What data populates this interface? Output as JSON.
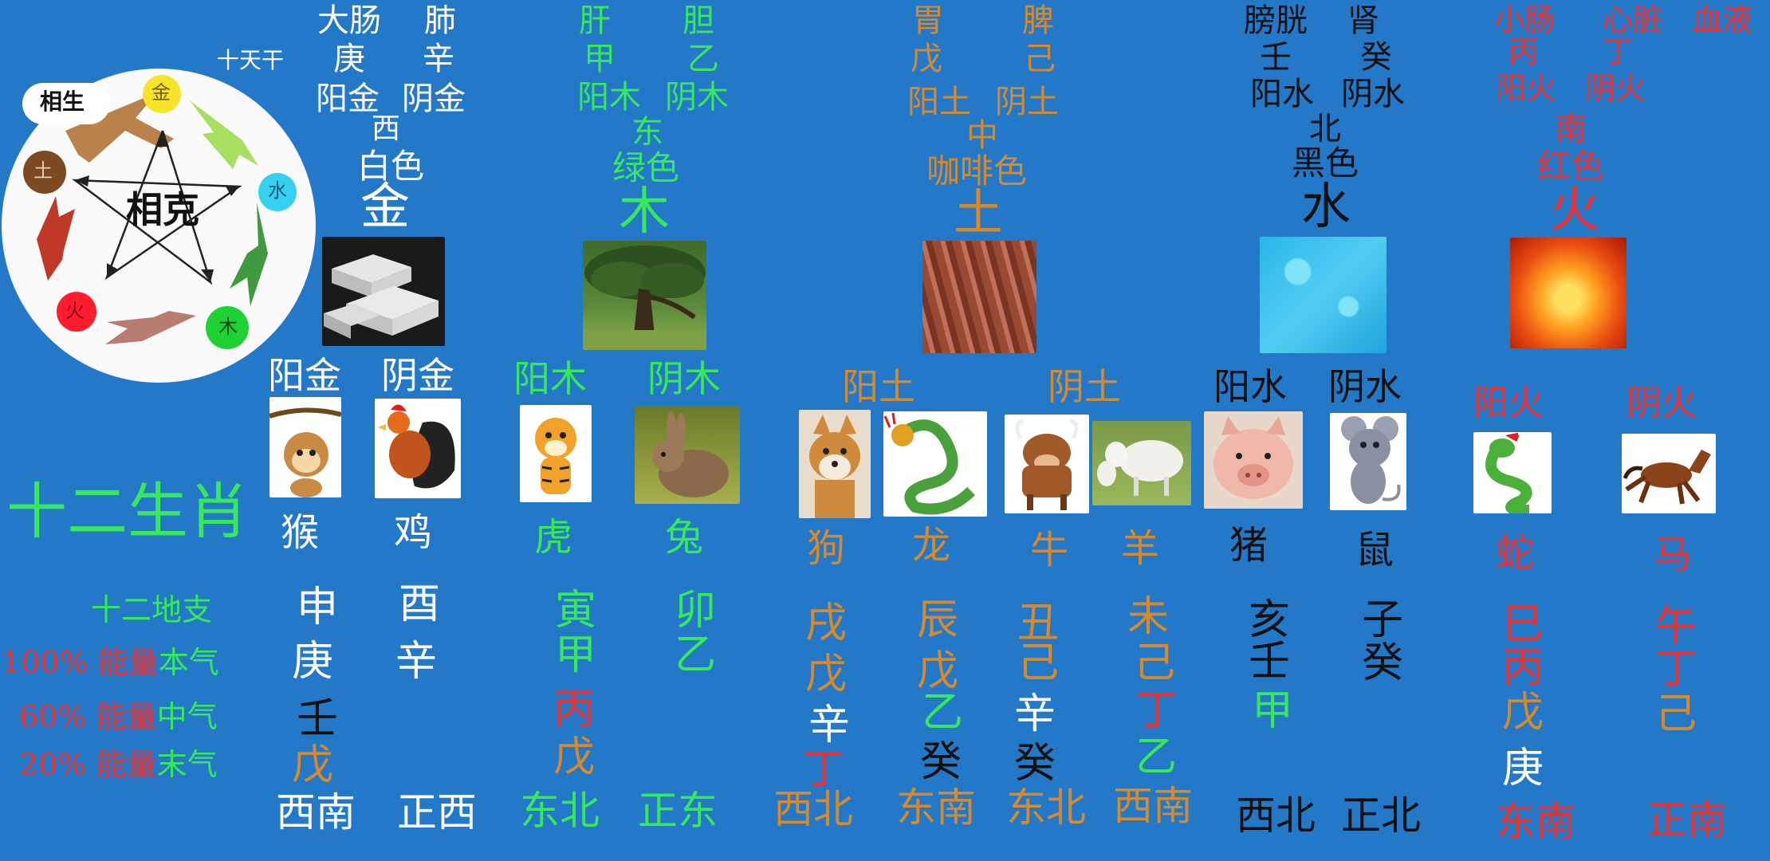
{
  "wheel": {
    "sheng_label": "相生",
    "ke_label": "相克",
    "nodes": {
      "jin": "金",
      "shui": "水",
      "mu": "木",
      "huo": "火",
      "tu": "土"
    }
  },
  "tiangan_label": "十天干",
  "groups": {
    "metal": {
      "organs": [
        "大肠",
        "肺"
      ],
      "stems": [
        "庚",
        "辛"
      ],
      "yinyang": [
        "阳金",
        "阴金"
      ],
      "direction": "西",
      "color": "白色",
      "element": "金"
    },
    "wood": {
      "organs": [
        "肝",
        "胆"
      ],
      "stems": [
        "甲",
        "乙"
      ],
      "yinyang": [
        "阳木",
        "阴木"
      ],
      "direction": "东",
      "color": "绿色",
      "element": "木"
    },
    "earth": {
      "organs": [
        "胃",
        "脾"
      ],
      "stems": [
        "戊",
        "己"
      ],
      "yinyang": [
        "阳土",
        "阴土"
      ],
      "direction": "中",
      "color": "咖啡色",
      "element": "土"
    },
    "water": {
      "organs": [
        "膀胱",
        "肾"
      ],
      "stems": [
        "壬",
        "癸"
      ],
      "yinyang": [
        "阳水",
        "阴水"
      ],
      "direction": "北",
      "color": "黑色",
      "element": "水"
    },
    "fire": {
      "organs": [
        "小肠",
        "心脏",
        "血液"
      ],
      "stems": [
        "丙",
        "丁"
      ],
      "yinyang": [
        "阳火",
        "阴火"
      ],
      "direction": "南",
      "color": "红色",
      "element": "火"
    }
  },
  "zodiac_title": "十二生肖",
  "row_labels": {
    "branches": "十二地支",
    "main": {
      "pct": "100%",
      "energy": "能量",
      "name": "本气"
    },
    "middle": {
      "pct": "60%",
      "energy": "能量",
      "name": "中气"
    },
    "residual": {
      "pct": "20%",
      "energy": "能量",
      "name": "末气"
    }
  },
  "yinyang_headers": [
    "阳金",
    "阴金",
    "阳木",
    "阴木",
    "阳土",
    "阴土",
    "阳水",
    "阴水",
    "阳火",
    "阴火"
  ],
  "animals": [
    {
      "name": "猴",
      "branch": "申",
      "main": "庚",
      "middle": "壬",
      "residual": "戊",
      "direction": "西南"
    },
    {
      "name": "鸡",
      "branch": "酉",
      "main": "辛",
      "middle": "",
      "residual": "",
      "direction": "正西"
    },
    {
      "name": "虎",
      "branch": "寅",
      "main": "甲",
      "middle": "丙",
      "residual": "戊",
      "direction": "东北"
    },
    {
      "name": "兔",
      "branch": "卯",
      "main": "乙",
      "middle": "",
      "residual": "",
      "direction": "正东"
    },
    {
      "name": "狗",
      "branch": "戌",
      "main": "戊",
      "middle": "辛",
      "residual": "丁",
      "direction": "西北"
    },
    {
      "name": "龙",
      "branch": "辰",
      "main": "戊",
      "middle": "乙",
      "residual": "癸",
      "direction": "东南"
    },
    {
      "name": "牛",
      "branch": "丑",
      "main": "己",
      "middle": "辛",
      "residual": "癸",
      "direction": "东北"
    },
    {
      "name": "羊",
      "branch": "未",
      "main": "己",
      "middle": "丁",
      "residual": "乙",
      "direction": "西南"
    },
    {
      "name": "猪",
      "branch": "亥",
      "main": "壬",
      "middle": "甲",
      "residual": "",
      "direction": "西北"
    },
    {
      "name": "鼠",
      "branch": "子",
      "main": "癸",
      "middle": "",
      "residual": "",
      "direction": "正北"
    },
    {
      "name": "蛇",
      "branch": "巳",
      "main": "丙",
      "middle": "戊",
      "residual": "庚",
      "direction": "东南"
    },
    {
      "name": "马",
      "branch": "午",
      "main": "丁",
      "middle": "己",
      "residual": "",
      "direction": "正南"
    }
  ],
  "colors": {
    "background": "#2478c8",
    "metal": "#ffffff",
    "wood": "#37e85a",
    "earth": "#d78a2c",
    "water": "#111111",
    "fire": "#ee2d2d"
  }
}
